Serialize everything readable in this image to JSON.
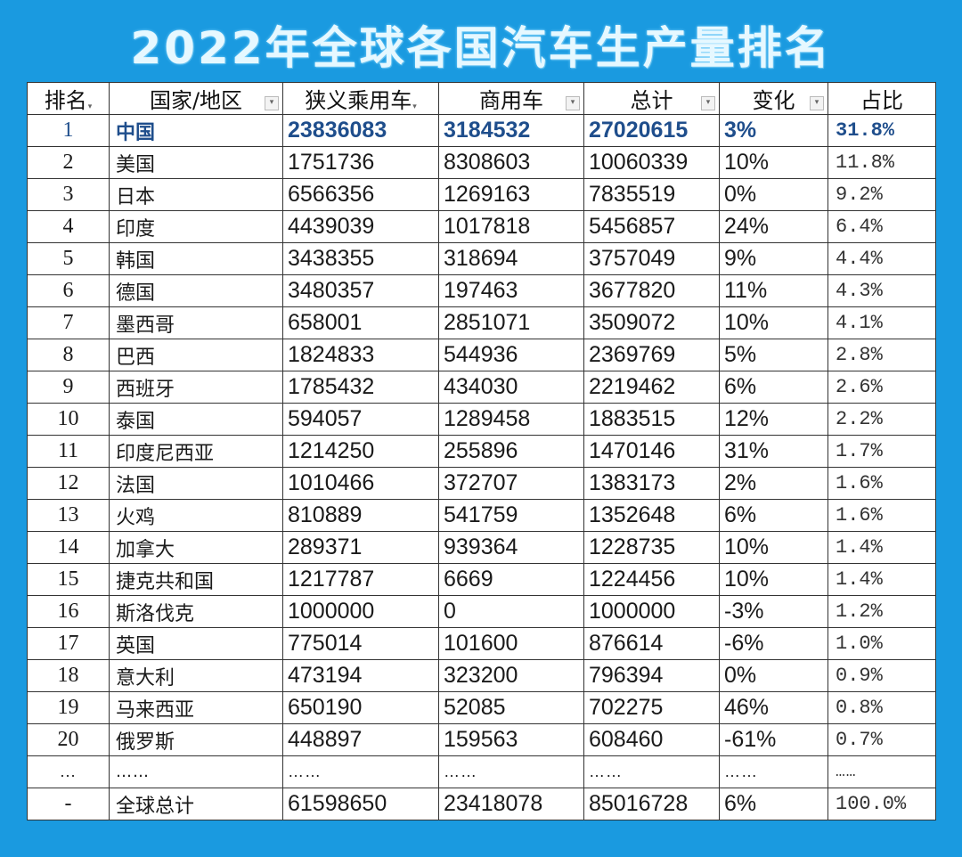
{
  "title": "2022年全球各国汽车生产量排名",
  "table": {
    "headers": [
      {
        "label": "排名",
        "filter": true
      },
      {
        "label": "国家/地区",
        "filter": true
      },
      {
        "label": "狭义乘用车",
        "filter": true
      },
      {
        "label": "商用车",
        "filter": true
      },
      {
        "label": "总计",
        "filter": true
      },
      {
        "label": "变化",
        "filter": true
      },
      {
        "label": "占比",
        "filter": false
      }
    ],
    "filter_glyph": "▾",
    "rows": [
      {
        "rank": "1",
        "country": "中国",
        "passenger": "23836083",
        "commercial": "3184532",
        "total": "27020615",
        "change": "3%",
        "share": "31.8%"
      },
      {
        "rank": "2",
        "country": "美国",
        "passenger": "1751736",
        "commercial": "8308603",
        "total": "10060339",
        "change": "10%",
        "share": "11.8%"
      },
      {
        "rank": "3",
        "country": "日本",
        "passenger": "6566356",
        "commercial": "1269163",
        "total": "7835519",
        "change": "0%",
        "share": "9.2%"
      },
      {
        "rank": "4",
        "country": "印度",
        "passenger": "4439039",
        "commercial": "1017818",
        "total": "5456857",
        "change": "24%",
        "share": "6.4%"
      },
      {
        "rank": "5",
        "country": "韩国",
        "passenger": "3438355",
        "commercial": "318694",
        "total": "3757049",
        "change": "9%",
        "share": "4.4%"
      },
      {
        "rank": "6",
        "country": "德国",
        "passenger": "3480357",
        "commercial": "197463",
        "total": "3677820",
        "change": "11%",
        "share": "4.3%"
      },
      {
        "rank": "7",
        "country": "墨西哥",
        "passenger": "658001",
        "commercial": "2851071",
        "total": "3509072",
        "change": "10%",
        "share": "4.1%"
      },
      {
        "rank": "8",
        "country": "巴西",
        "passenger": "1824833",
        "commercial": "544936",
        "total": "2369769",
        "change": "5%",
        "share": "2.8%"
      },
      {
        "rank": "9",
        "country": "西班牙",
        "passenger": "1785432",
        "commercial": "434030",
        "total": "2219462",
        "change": "6%",
        "share": "2.6%"
      },
      {
        "rank": "10",
        "country": "泰国",
        "passenger": "594057",
        "commercial": "1289458",
        "total": "1883515",
        "change": "12%",
        "share": "2.2%"
      },
      {
        "rank": "11",
        "country": "印度尼西亚",
        "passenger": "1214250",
        "commercial": "255896",
        "total": "1470146",
        "change": "31%",
        "share": "1.7%"
      },
      {
        "rank": "12",
        "country": "法国",
        "passenger": "1010466",
        "commercial": "372707",
        "total": "1383173",
        "change": "2%",
        "share": "1.6%"
      },
      {
        "rank": "13",
        "country": "火鸡",
        "passenger": "810889",
        "commercial": "541759",
        "total": "1352648",
        "change": "6%",
        "share": "1.6%"
      },
      {
        "rank": "14",
        "country": "加拿大",
        "passenger": "289371",
        "commercial": "939364",
        "total": "1228735",
        "change": "10%",
        "share": "1.4%"
      },
      {
        "rank": "15",
        "country": "捷克共和国",
        "passenger": "1217787",
        "commercial": "6669",
        "total": "1224456",
        "change": "10%",
        "share": "1.4%"
      },
      {
        "rank": "16",
        "country": "斯洛伐克",
        "passenger": "1000000",
        "commercial": "0",
        "total": "1000000",
        "change": "-3%",
        "share": "1.2%"
      },
      {
        "rank": "17",
        "country": "英国",
        "passenger": "775014",
        "commercial": "101600",
        "total": "876614",
        "change": "-6%",
        "share": "1.0%"
      },
      {
        "rank": "18",
        "country": "意大利",
        "passenger": "473194",
        "commercial": "323200",
        "total": "796394",
        "change": "0%",
        "share": "0.9%"
      },
      {
        "rank": "19",
        "country": "马来西亚",
        "passenger": "650190",
        "commercial": "52085",
        "total": "702275",
        "change": "46%",
        "share": "0.8%"
      },
      {
        "rank": "20",
        "country": "俄罗斯",
        "passenger": "448897",
        "commercial": "159563",
        "total": "608460",
        "change": "-61%",
        "share": "0.7%"
      }
    ],
    "ellipsis_row": {
      "rank": "…",
      "country": "……",
      "passenger": "……",
      "commercial": "……",
      "total": "……",
      "change": "……",
      "share": "……"
    },
    "total_row": {
      "rank": "-",
      "country": "全球总计",
      "passenger": "61598650",
      "commercial": "23418078",
      "total": "85016728",
      "change": "6%",
      "share": "100.0%"
    }
  },
  "colors": {
    "background": "#1a9ae0",
    "title": "#e6f8ff",
    "highlight_text": "#1f4e8c",
    "grid": "#333333"
  }
}
